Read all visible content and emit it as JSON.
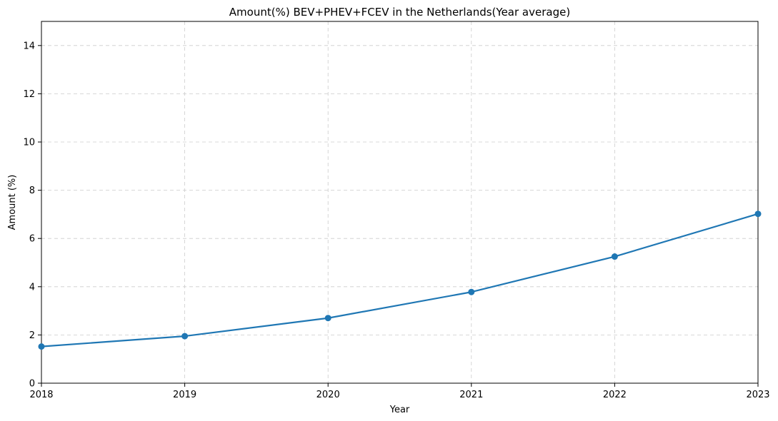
{
  "chart_data": {
    "type": "line",
    "title": "Amount(%) BEV+PHEV+FCEV in the Netherlands(Year average)",
    "xlabel": "Year",
    "ylabel": "Amount (%)",
    "x": [
      2018,
      2019,
      2020,
      2021,
      2022,
      2023
    ],
    "xlim": [
      2018,
      2023
    ],
    "ylim": [
      0,
      15
    ],
    "xticks": [
      "2018",
      "2019",
      "2020",
      "2021",
      "2022",
      "2023"
    ],
    "yticks": [
      0,
      2,
      4,
      6,
      8,
      10,
      12,
      14
    ],
    "grid": true,
    "series": [
      {
        "values": [
          1.52,
          1.95,
          2.7,
          3.78,
          5.25,
          7.02
        ],
        "color": "#1f77b4",
        "marker": "circle"
      }
    ]
  }
}
